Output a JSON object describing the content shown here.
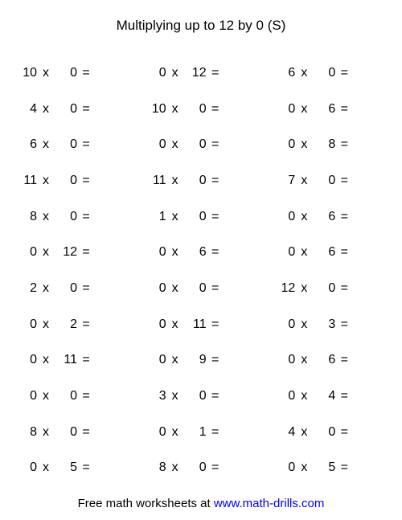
{
  "title": "Multiplying up to 12 by 0 (S)",
  "symbols": {
    "times": "x",
    "equals": "="
  },
  "problems": [
    [
      10,
      0
    ],
    [
      0,
      12
    ],
    [
      6,
      0
    ],
    [
      4,
      0
    ],
    [
      10,
      0
    ],
    [
      0,
      6
    ],
    [
      6,
      0
    ],
    [
      0,
      0
    ],
    [
      0,
      8
    ],
    [
      11,
      0
    ],
    [
      11,
      0
    ],
    [
      7,
      0
    ],
    [
      8,
      0
    ],
    [
      1,
      0
    ],
    [
      0,
      6
    ],
    [
      0,
      12
    ],
    [
      0,
      6
    ],
    [
      0,
      6
    ],
    [
      2,
      0
    ],
    [
      0,
      0
    ],
    [
      12,
      0
    ],
    [
      0,
      2
    ],
    [
      0,
      11
    ],
    [
      0,
      3
    ],
    [
      0,
      11
    ],
    [
      0,
      9
    ],
    [
      0,
      6
    ],
    [
      0,
      0
    ],
    [
      3,
      0
    ],
    [
      0,
      4
    ],
    [
      8,
      0
    ],
    [
      0,
      1
    ],
    [
      4,
      0
    ],
    [
      0,
      5
    ],
    [
      8,
      0
    ],
    [
      0,
      5
    ]
  ],
  "footer": {
    "text": "Free math worksheets at ",
    "link": "www.math-drills.com"
  },
  "colors": {
    "text": "#000000",
    "link": "#0000ee",
    "background": "#ffffff"
  }
}
